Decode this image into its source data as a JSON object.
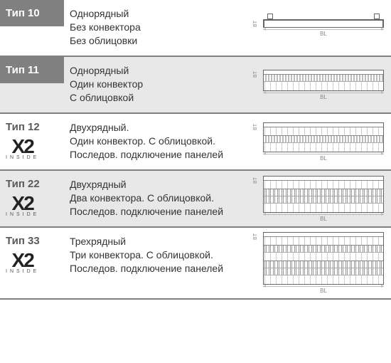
{
  "rows": [
    {
      "type_label": "Тип 10",
      "label_style": "gray",
      "alt_bg": false,
      "has_x2": false,
      "desc_lines": [
        "Однорядный",
        "Без конвектора",
        "Без облицовки"
      ],
      "diagram": {
        "kind": "type10",
        "panels": 1,
        "convectors": 0,
        "connectors": true,
        "bl_label": "BL",
        "bt_label": "BT"
      }
    },
    {
      "type_label": "Тип 11",
      "label_style": "gray",
      "alt_bg": true,
      "has_x2": false,
      "desc_lines": [
        "Однорядный",
        "Один конвектор",
        "С облицовкой"
      ],
      "diagram": {
        "kind": "type11",
        "panels": 1,
        "convectors": 1,
        "connectors": false,
        "bl_label": "BL",
        "bt_label": "BT"
      }
    },
    {
      "type_label": "Тип 12",
      "label_style": "plain",
      "alt_bg": false,
      "has_x2": true,
      "x2_text": "X2",
      "x2_inside": "INSIDE",
      "desc_lines": [
        "Двухрядный.",
        "Один конвектор. С облицовкой.",
        "Последов. подключение панелей"
      ],
      "diagram": {
        "kind": "type12",
        "panels": 2,
        "convectors": 1,
        "connectors": false,
        "bl_label": "BL",
        "bt_label": "BT"
      }
    },
    {
      "type_label": "Тип 22",
      "label_style": "plain",
      "alt_bg": true,
      "has_x2": true,
      "x2_text": "X2",
      "x2_inside": "INSIDE",
      "desc_lines": [
        "Двухрядный",
        "Два конвектора. С облицовкой.",
        "Последов. подключение панелей"
      ],
      "diagram": {
        "kind": "type22",
        "panels": 2,
        "convectors": 2,
        "connectors": false,
        "bl_label": "BL",
        "bt_label": "BT"
      }
    },
    {
      "type_label": "Тип 33",
      "label_style": "plain",
      "alt_bg": false,
      "has_x2": true,
      "x2_text": "X2",
      "x2_inside": "INSIDE",
      "desc_lines": [
        "Трехрядный",
        "Три конвектора. С облицовкой.",
        "Последов. подключение панелей"
      ],
      "diagram": {
        "kind": "type33",
        "panels": 3,
        "convectors": 3,
        "connectors": false,
        "bl_label": "BL",
        "bt_label": "BT"
      }
    }
  ],
  "colors": {
    "gray_header": "#808080",
    "alt_row": "#e8e8e8",
    "border": "#808080",
    "text": "#333333"
  }
}
